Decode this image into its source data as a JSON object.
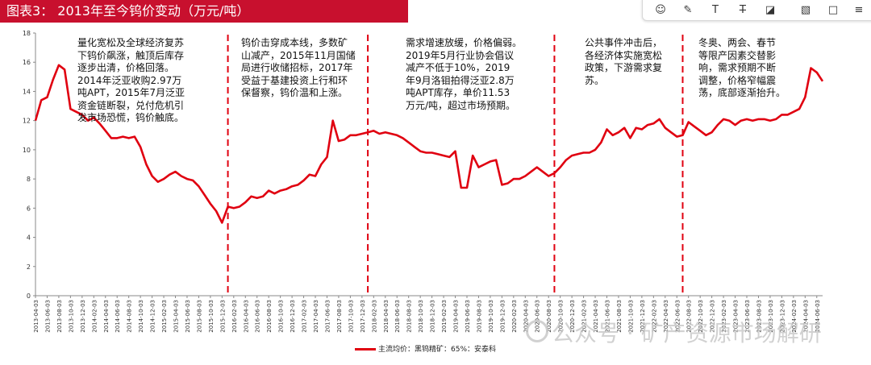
{
  "title": "图表3：  2013年至今钨价变动（万元/吨）",
  "toolbar": {
    "items": [
      {
        "name": "comment-tool-icon",
        "glyph": "☺"
      },
      {
        "name": "pen-tool-icon",
        "glyph": "✎"
      },
      {
        "name": "text-tool-icon",
        "glyph": "T"
      },
      {
        "name": "strikethrough-tool-icon",
        "glyph": "T̶"
      },
      {
        "name": "highlight-tool-icon",
        "glyph": "◪"
      },
      {
        "name": "eraser-tool-icon",
        "glyph": "▧"
      },
      {
        "name": "box-tool-icon",
        "glyph": "□"
      },
      {
        "name": "more-tool-icon",
        "glyph": "≡"
      }
    ]
  },
  "annotations": [
    "量化宽松及全球经济复苏\n下钨价飙涨，触顶后库存\n逐步出清，价格回落。\n2014年泛亚收购2.97万\n吨APT，2015年7月泛亚\n资金链断裂，兑付危机引\n发市场恐慌，钨价触底。",
    "钨价击穿成本线，多数矿\n山减产，2015年11月国储\n局进行收储招标，2017年\n受益于基建投资上行和环\n保督察，钨价温和上涨。",
    "需求增速放缓，价格偏弱。\n2019年5月行业协会倡议\n减产不低于10%，2019\n年9月洛钼拍得泛亚2.8万\n吨APT库存，单价11.53\n万元/吨，超过市场预期。",
    "公共事件冲击后，\n各经济体实施宽松\n政策，下游需求复\n苏。",
    "冬奥、两会、春节\n等限产因素交替影\n响，需求预期不断\n调整，价格窄幅震\n荡，底部逐渐抬升。"
  ],
  "legend_label": "主流均价：黑钨精矿：65%：安泰科",
  "watermark": "公众号 · 矿产资源市场解研",
  "colors": {
    "line": "#e00010",
    "title_bg": "#c8102e",
    "divider": "#e00010"
  },
  "chart_data": {
    "type": "line",
    "title": "",
    "xlabel": "",
    "ylabel": "",
    "ylim": [
      0,
      18
    ],
    "yticks": [
      0,
      2,
      4,
      6,
      8,
      10,
      12,
      14,
      16,
      18
    ],
    "x_start": "2013-04",
    "x_end": "2024-07",
    "xtick_labels": [
      "2013-04-03",
      "2013-06-03",
      "2013-08-03",
      "2013-10-03",
      "2013-12-03",
      "2014-02-03",
      "2014-04-03",
      "2014-06-03",
      "2014-08-03",
      "2014-10-03",
      "2014-12-03",
      "2015-02-03",
      "2015-04-03",
      "2015-06-03",
      "2015-08-03",
      "2015-10-03",
      "2015-12-03",
      "2016-02-03",
      "2016-04-03",
      "2016-06-03",
      "2016-08-03",
      "2016-10-03",
      "2016-12-03",
      "2017-02-03",
      "2017-04-03",
      "2017-06-03",
      "2017-08-03",
      "2017-10-03",
      "2017-12-03",
      "2018-02-03",
      "2018-04-03",
      "2018-06-03",
      "2018-08-03",
      "2018-10-03",
      "2018-12-03",
      "2019-02-03",
      "2019-04-03",
      "2019-06-03",
      "2019-08-03",
      "2019-10-03",
      "2019-12-03",
      "2020-02-03",
      "2020-04-03",
      "2020-06-03",
      "2020-08-03",
      "2020-10-03",
      "2020-12-03",
      "2021-02-03",
      "2021-04-03",
      "2021-06-03",
      "2021-08-03",
      "2021-10-03",
      "2021-12-03",
      "2022-02-03",
      "2022-04-03",
      "2022-06-03",
      "2022-08-03",
      "2022-10-03",
      "2022-12-03",
      "2023-02-03",
      "2023-04-03",
      "2023-06-03",
      "2023-08-03",
      "2023-10-03",
      "2023-12-03",
      "2024-02-03",
      "2024-04-03",
      "2024-06-03"
    ],
    "dividers": [
      "2016-01",
      "2018-01",
      "2020-09",
      "2022-07"
    ],
    "series": [
      {
        "name": "主流均价：黑钨精矿：65%：安泰科",
        "x": [
          "2013-04",
          "2013-05",
          "2013-06",
          "2013-07",
          "2013-08",
          "2013-09",
          "2013-10",
          "2013-11",
          "2013-12",
          "2014-01",
          "2014-02",
          "2014-03",
          "2014-04",
          "2014-05",
          "2014-06",
          "2014-07",
          "2014-08",
          "2014-09",
          "2014-10",
          "2014-11",
          "2014-12",
          "2015-01",
          "2015-02",
          "2015-03",
          "2015-04",
          "2015-05",
          "2015-06",
          "2015-07",
          "2015-08",
          "2015-09",
          "2015-10",
          "2015-11",
          "2015-12",
          "2016-01",
          "2016-02",
          "2016-03",
          "2016-04",
          "2016-05",
          "2016-06",
          "2016-07",
          "2016-08",
          "2016-09",
          "2016-10",
          "2016-11",
          "2016-12",
          "2017-01",
          "2017-02",
          "2017-03",
          "2017-04",
          "2017-05",
          "2017-06",
          "2017-07",
          "2017-08",
          "2017-09",
          "2017-10",
          "2017-11",
          "2017-12",
          "2018-01",
          "2018-02",
          "2018-03",
          "2018-04",
          "2018-05",
          "2018-06",
          "2018-07",
          "2018-08",
          "2018-09",
          "2018-10",
          "2018-11",
          "2018-12",
          "2019-01",
          "2019-02",
          "2019-03",
          "2019-04",
          "2019-05",
          "2019-06",
          "2019-07",
          "2019-08",
          "2019-09",
          "2019-10",
          "2019-11",
          "2019-12",
          "2020-01",
          "2020-02",
          "2020-03",
          "2020-04",
          "2020-05",
          "2020-06",
          "2020-07",
          "2020-08",
          "2020-09",
          "2020-10",
          "2020-11",
          "2020-12",
          "2021-01",
          "2021-02",
          "2021-03",
          "2021-04",
          "2021-05",
          "2021-06",
          "2021-07",
          "2021-08",
          "2021-09",
          "2021-10",
          "2021-11",
          "2021-12",
          "2022-01",
          "2022-02",
          "2022-03",
          "2022-04",
          "2022-05",
          "2022-06",
          "2022-07",
          "2022-08",
          "2022-09",
          "2022-10",
          "2022-11",
          "2022-12",
          "2023-01",
          "2023-02",
          "2023-03",
          "2023-04",
          "2023-05",
          "2023-06",
          "2023-07",
          "2023-08",
          "2023-09",
          "2023-10",
          "2023-11",
          "2023-12",
          "2024-01",
          "2024-02",
          "2024-03",
          "2024-04",
          "2024-05",
          "2024-06",
          "2024-07"
        ],
        "values": [
          12.0,
          13.4,
          13.6,
          14.8,
          15.8,
          15.5,
          12.8,
          12.6,
          12.4,
          12.0,
          12.2,
          11.8,
          11.3,
          10.8,
          10.8,
          10.9,
          10.8,
          10.9,
          10.2,
          9.0,
          8.2,
          7.8,
          8.0,
          8.3,
          8.5,
          8.2,
          8.0,
          7.9,
          7.5,
          6.9,
          6.3,
          5.8,
          5.0,
          6.1,
          6.0,
          6.1,
          6.4,
          6.8,
          6.7,
          6.8,
          7.2,
          7.0,
          7.2,
          7.3,
          7.5,
          7.6,
          7.9,
          8.3,
          8.2,
          9.0,
          9.5,
          12.0,
          10.6,
          10.7,
          11.0,
          11.0,
          11.1,
          11.2,
          11.3,
          11.1,
          11.2,
          11.1,
          11.0,
          10.8,
          10.5,
          10.2,
          9.9,
          9.8,
          9.8,
          9.7,
          9.6,
          9.5,
          9.9,
          7.4,
          7.4,
          9.6,
          8.8,
          9.0,
          9.2,
          9.3,
          7.6,
          7.7,
          8.0,
          8.0,
          8.2,
          8.5,
          8.8,
          8.5,
          8.2,
          8.4,
          8.8,
          9.3,
          9.6,
          9.7,
          9.8,
          9.8,
          10.0,
          10.5,
          11.4,
          11.0,
          11.2,
          11.5,
          10.8,
          11.5,
          11.4,
          11.7,
          11.8,
          12.1,
          11.5,
          11.2,
          10.9,
          11.0,
          11.9,
          11.6,
          11.3,
          11.0,
          11.2,
          11.7,
          12.1,
          12.0,
          11.7,
          12.0,
          12.1,
          12.0,
          12.1,
          12.1,
          12.0,
          12.1,
          12.4,
          12.4,
          12.6,
          12.8,
          13.6,
          15.6,
          15.3,
          14.7
        ]
      }
    ]
  }
}
